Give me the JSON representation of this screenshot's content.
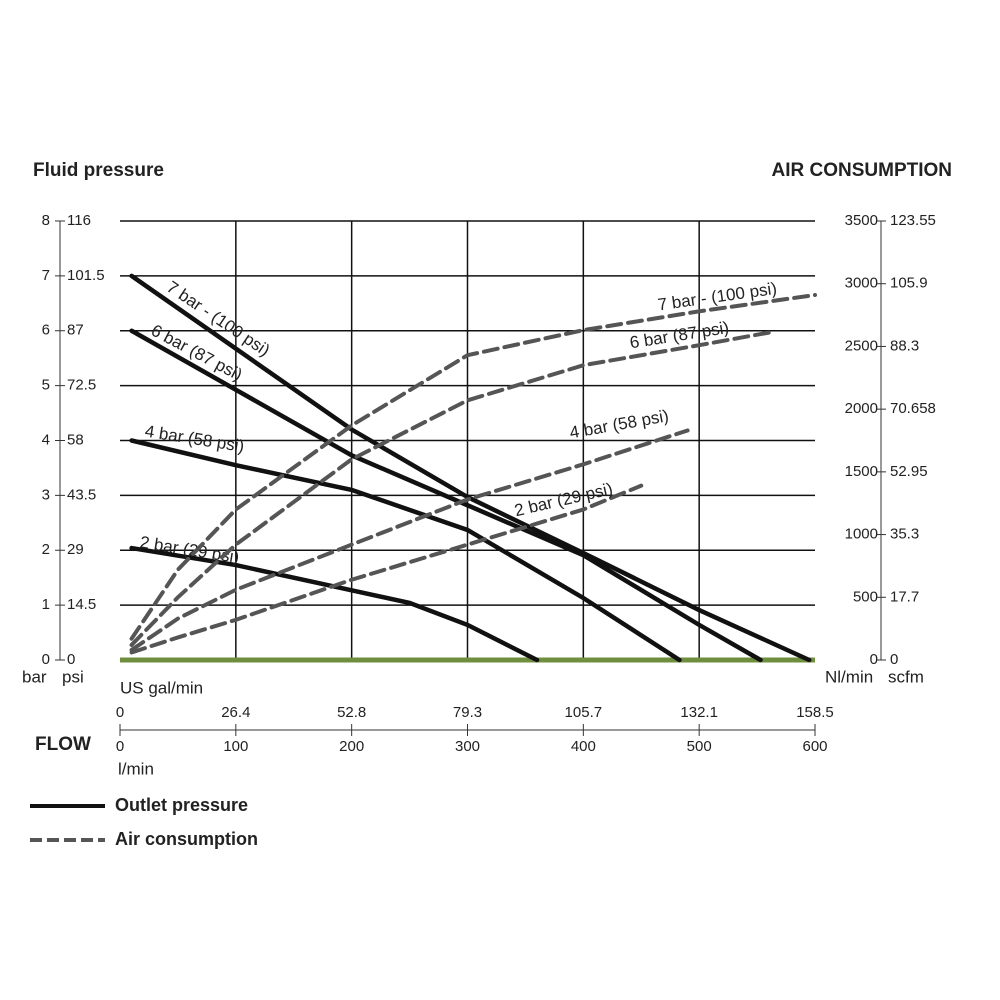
{
  "chart_data": {
    "type": "line",
    "title_left": "Fluid pressure",
    "title_right": "AIR CONSUMPTION",
    "y_unit": "bar",
    "y_alt_unit": "psi",
    "y2_unit": "Nl/min",
    "y2_alt_unit": "scfm",
    "x_label": "FLOW",
    "x_unit": "l/min",
    "x_alt_unit": "US gal/min",
    "xlim": [
      0,
      600
    ],
    "xticks": [
      0,
      100,
      200,
      300,
      400,
      500,
      600
    ],
    "x_alt_ticks": [
      {
        "value": 0,
        "label": "0"
      },
      {
        "value": 100,
        "label": "26.4"
      },
      {
        "value": 200,
        "label": "52.8"
      },
      {
        "value": 300,
        "label": "79.3"
      },
      {
        "value": 400,
        "label": "105.7"
      },
      {
        "value": 500,
        "label": "132.1"
      },
      {
        "value": 600,
        "label": "158.5"
      }
    ],
    "ylim": [
      0,
      8
    ],
    "yticks": [
      0,
      1,
      2,
      3,
      4,
      5,
      6,
      7,
      8
    ],
    "y_alt_ticks": [
      {
        "value": 0,
        "label": "0"
      },
      {
        "value": 1,
        "label": "14.5"
      },
      {
        "value": 2,
        "label": "29"
      },
      {
        "value": 3,
        "label": "43.5"
      },
      {
        "value": 4,
        "label": "58"
      },
      {
        "value": 5,
        "label": "72.5"
      },
      {
        "value": 6,
        "label": "87"
      },
      {
        "value": 7,
        "label": "101.5"
      },
      {
        "value": 8,
        "label": "116"
      }
    ],
    "y2lim": [
      0,
      3500
    ],
    "y2ticks": [
      0,
      500,
      1000,
      1500,
      2000,
      2500,
      3000,
      3500
    ],
    "y2_alt_ticks": [
      {
        "value": 0,
        "label": "0"
      },
      {
        "value": 500,
        "label": "17.7"
      },
      {
        "value": 1000,
        "label": "35.3"
      },
      {
        "value": 1500,
        "label": "52.95"
      },
      {
        "value": 2000,
        "label": "70.658"
      },
      {
        "value": 2500,
        "label": "88.3"
      },
      {
        "value": 3000,
        "label": "105.9"
      },
      {
        "value": 3500,
        "label": "123.55"
      }
    ],
    "grid": true,
    "baseline_color": "#6f8f3f",
    "legend": [
      {
        "label": "Outlet pressure",
        "style": "solid",
        "color": "#111111"
      },
      {
        "label": "Air consumption",
        "style": "dashed",
        "color": "#555555"
      }
    ],
    "series": [
      {
        "name": "7 bar - (100 psi)",
        "style": "solid",
        "color": "#111111",
        "x": [
          10,
          200,
          300,
          400,
          500,
          595
        ],
        "values": [
          7.0,
          4.2,
          2.97,
          1.95,
          0.91,
          0
        ]
      },
      {
        "name": "6 bar (87 psi)",
        "style": "solid",
        "color": "#111111",
        "x": [
          10,
          200,
          300,
          400,
          500,
          553
        ],
        "values": [
          6.0,
          3.73,
          2.82,
          1.91,
          0.64,
          0
        ]
      },
      {
        "name": "4 bar (58 psi)",
        "style": "solid",
        "color": "#111111",
        "x": [
          10,
          100,
          200,
          300,
          400,
          483
        ],
        "values": [
          4.0,
          3.55,
          3.1,
          2.37,
          1.13,
          0
        ]
      },
      {
        "name": "2 bar (29 psi)",
        "style": "solid",
        "color": "#111111",
        "x": [
          10,
          100,
          200,
          250,
          300,
          360
        ],
        "values": [
          2.04,
          1.73,
          1.27,
          1.04,
          0.64,
          0
        ]
      },
      {
        "name": "7 bar - (100 psi)",
        "style": "dashed",
        "axis": "y2",
        "color": "#555555",
        "x": [
          10,
          50,
          100,
          200,
          300,
          400,
          500,
          600
        ],
        "values": [
          170,
          720,
          1200,
          1870,
          2430,
          2630,
          2780,
          2910
        ]
      },
      {
        "name": "6 bar (87 psi)",
        "style": "dashed",
        "axis": "y2",
        "color": "#555555",
        "x": [
          10,
          50,
          100,
          200,
          300,
          400,
          500,
          560
        ],
        "values": [
          120,
          500,
          920,
          1600,
          2070,
          2350,
          2510,
          2610
        ]
      },
      {
        "name": "4 bar (58 psi)",
        "style": "dashed",
        "axis": "y2",
        "color": "#555555",
        "x": [
          10,
          50,
          100,
          200,
          300,
          400,
          490
        ],
        "values": [
          80,
          330,
          560,
          920,
          1280,
          1560,
          1830
        ]
      },
      {
        "name": "2 bar (29 psi)",
        "style": "dashed",
        "axis": "y2",
        "color": "#555555",
        "x": [
          10,
          50,
          100,
          200,
          300,
          400,
          450
        ],
        "values": [
          60,
          180,
          320,
          640,
          920,
          1200,
          1390
        ]
      }
    ]
  }
}
